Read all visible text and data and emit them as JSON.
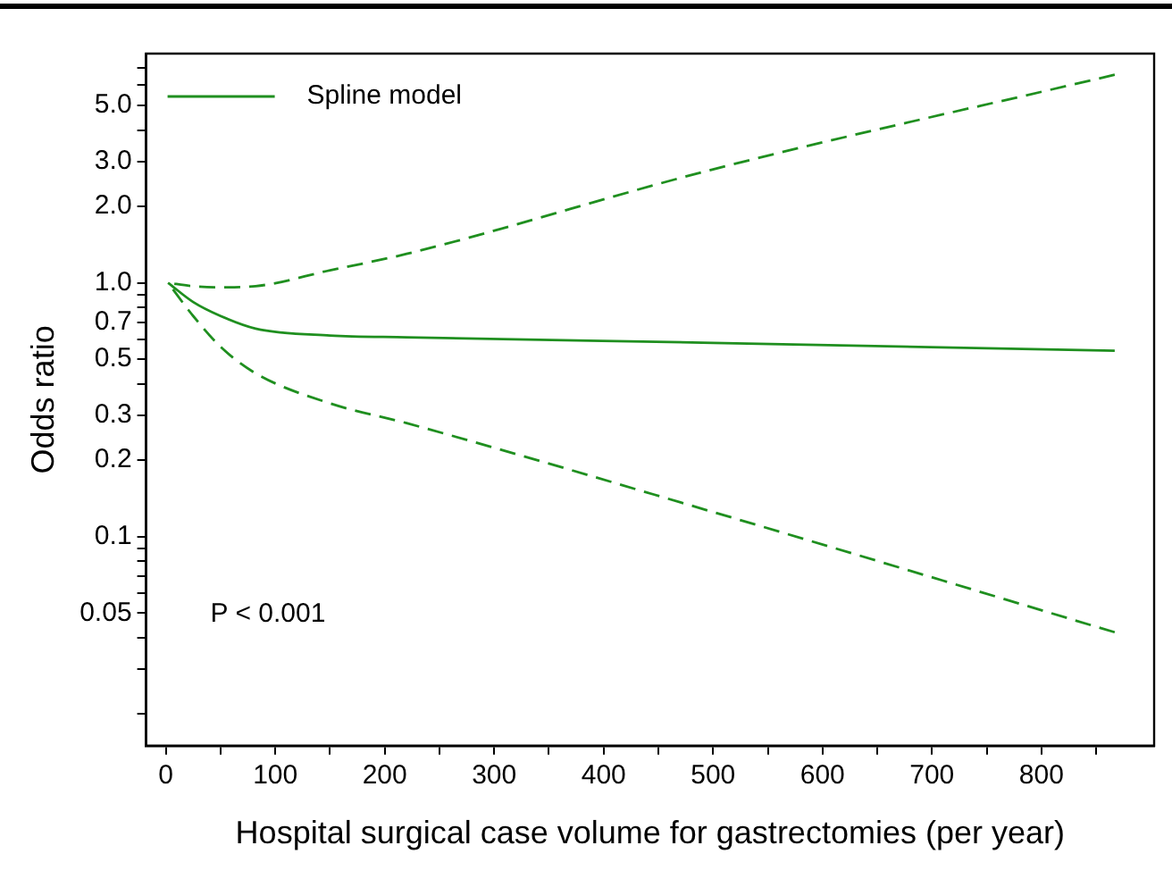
{
  "chart_data": {
    "type": "line",
    "xlabel": "Hospital surgical case volume for gastrectomies (per year)",
    "ylabel": "Odds ratio",
    "x": [
      2,
      25,
      50,
      82,
      150,
      220,
      500,
      867
    ],
    "series": [
      {
        "name": "Spline model",
        "color": "#1f8f1f",
        "line_style": "solid",
        "values": [
          1.0,
          0.84,
          0.74,
          0.66,
          0.62,
          0.61,
          0.58,
          0.54
        ]
      },
      {
        "color": "#1f8f1f",
        "line_style": "dashed",
        "values": [
          1.0,
          0.97,
          0.96,
          0.97,
          1.12,
          1.3,
          2.8,
          6.6
        ]
      },
      {
        "color": "#1f8f1f",
        "line_style": "dashed",
        "values": [
          1.0,
          0.74,
          0.56,
          0.44,
          0.335,
          0.28,
          0.125,
          0.042
        ]
      }
    ],
    "log": "y",
    "xlim": [
      -18,
      903
    ],
    "xticks": [
      0,
      {
        "value": 50,
        "label": null
      },
      100,
      {
        "value": 150,
        "label": null
      },
      200,
      {
        "value": 250,
        "label": null
      },
      300,
      {
        "value": 350,
        "label": null
      },
      400,
      {
        "value": 450,
        "label": null
      },
      500,
      {
        "value": 550,
        "label": null
      },
      600,
      {
        "value": 650,
        "label": null
      },
      700,
      {
        "value": 750,
        "label": null
      },
      800,
      {
        "value": 850,
        "label": null
      }
    ],
    "ylim": [
      0.015,
      8
    ],
    "yticks": [
      {
        "value": 0.02,
        "label": null
      },
      {
        "value": 0.03,
        "label": null
      },
      {
        "value": 0.04,
        "label": null
      },
      {
        "value": 0.05,
        "label": "0.05"
      },
      {
        "value": 0.06,
        "label": null
      },
      {
        "value": 0.07,
        "label": null
      },
      {
        "value": 0.08,
        "label": null
      },
      {
        "value": 0.09,
        "label": null
      },
      {
        "value": 0.1,
        "label": "0.1"
      },
      {
        "value": 0.2,
        "label": "0.2"
      },
      {
        "value": 0.3,
        "label": "0.3"
      },
      {
        "value": 0.4,
        "label": null
      },
      {
        "value": 0.5,
        "label": "0.5"
      },
      {
        "value": 0.6,
        "label": null
      },
      {
        "value": 0.7,
        "label": "0.7"
      },
      {
        "value": 0.8,
        "label": null
      },
      {
        "value": 0.9,
        "label": null
      },
      {
        "value": 1,
        "label": "1.0"
      },
      {
        "value": 2,
        "label": "2.0"
      },
      {
        "value": 3,
        "label": "3.0"
      },
      {
        "value": 4,
        "label": null
      },
      {
        "value": 5,
        "label": "5.0"
      },
      {
        "value": 6,
        "label": null
      },
      {
        "value": 7,
        "label": null
      }
    ],
    "grid": false,
    "legend": "top left",
    "marker": "none",
    "annotations": [
      "P < 0.001"
    ]
  }
}
